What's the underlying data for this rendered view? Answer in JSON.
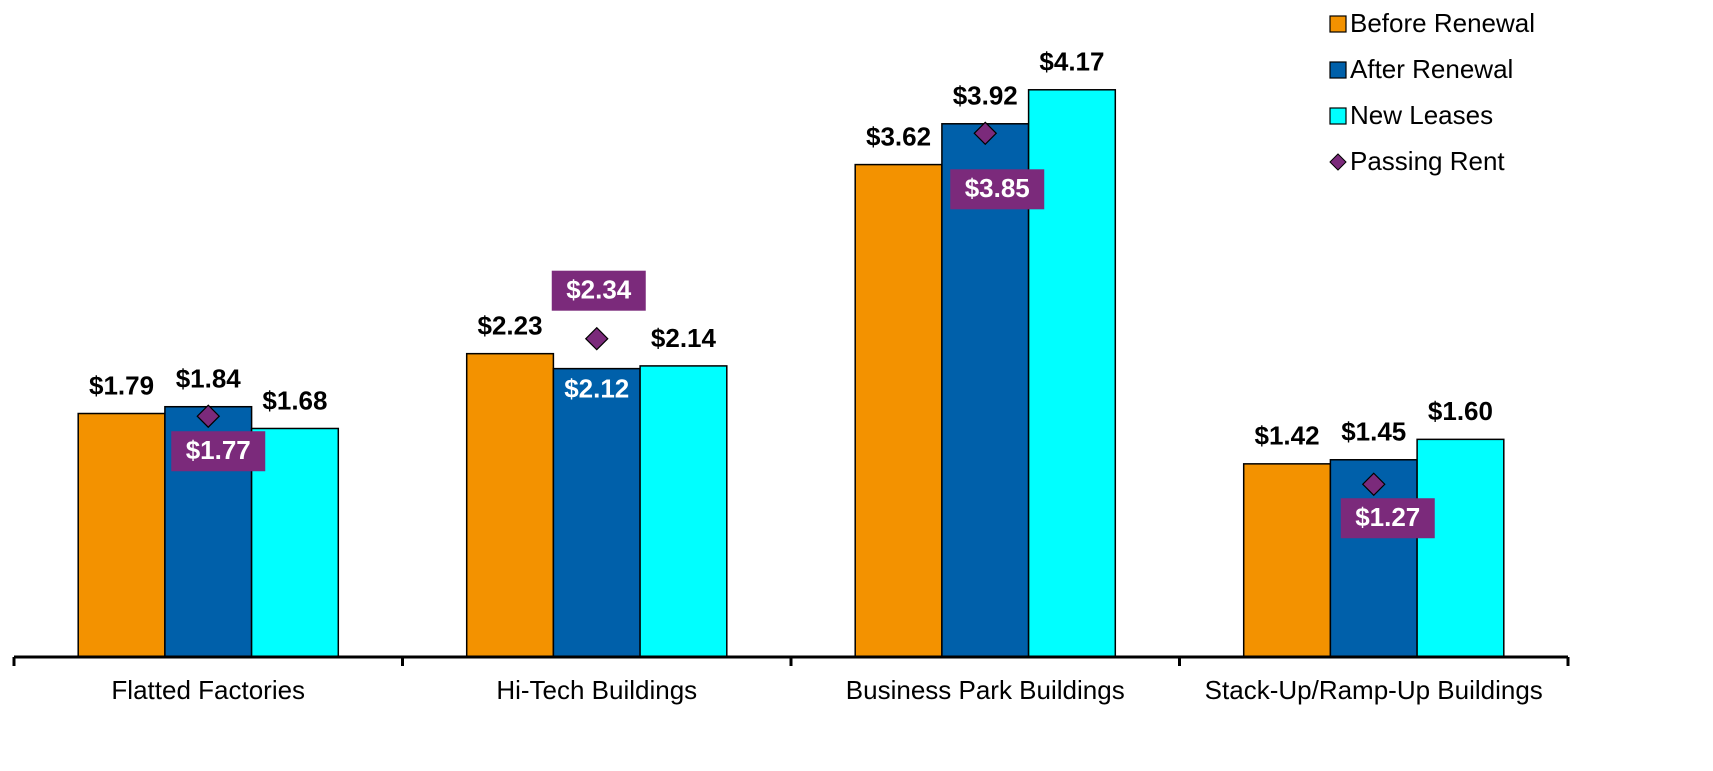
{
  "chart_data": {
    "type": "bar",
    "categories": [
      "Flatted Factories",
      "Hi-Tech Buildings",
      "Business Park Buildings",
      "Stack-Up/Ramp-Up Buildings"
    ],
    "series": [
      {
        "name": "Before Renewal",
        "color": "#F39200",
        "values": [
          1.79,
          2.23,
          3.62,
          1.42
        ],
        "value_labels": [
          "$1.79",
          "$2.23",
          "$3.62",
          "$1.42"
        ]
      },
      {
        "name": "After Renewal",
        "color": "#0060AA",
        "values": [
          1.84,
          2.12,
          3.92,
          1.45
        ],
        "value_labels": [
          "$1.84",
          "$2.12",
          "$3.92",
          "$1.45"
        ]
      },
      {
        "name": "New Leases",
        "color": "#00FFFF",
        "values": [
          1.68,
          2.14,
          4.17,
          1.6
        ],
        "value_labels": [
          "$1.68",
          "$2.14",
          "$4.17",
          "$1.60"
        ]
      },
      {
        "name": "Passing Rent",
        "type": "scatter",
        "marker": "diamond",
        "color": "#7B2A7B",
        "values": [
          1.77,
          2.34,
          3.85,
          1.27
        ],
        "value_labels": [
          "$1.77",
          "$2.34",
          "$3.85",
          "$1.27"
        ]
      }
    ],
    "ylim": [
      0,
      4.83
    ],
    "legend": "top-right"
  }
}
